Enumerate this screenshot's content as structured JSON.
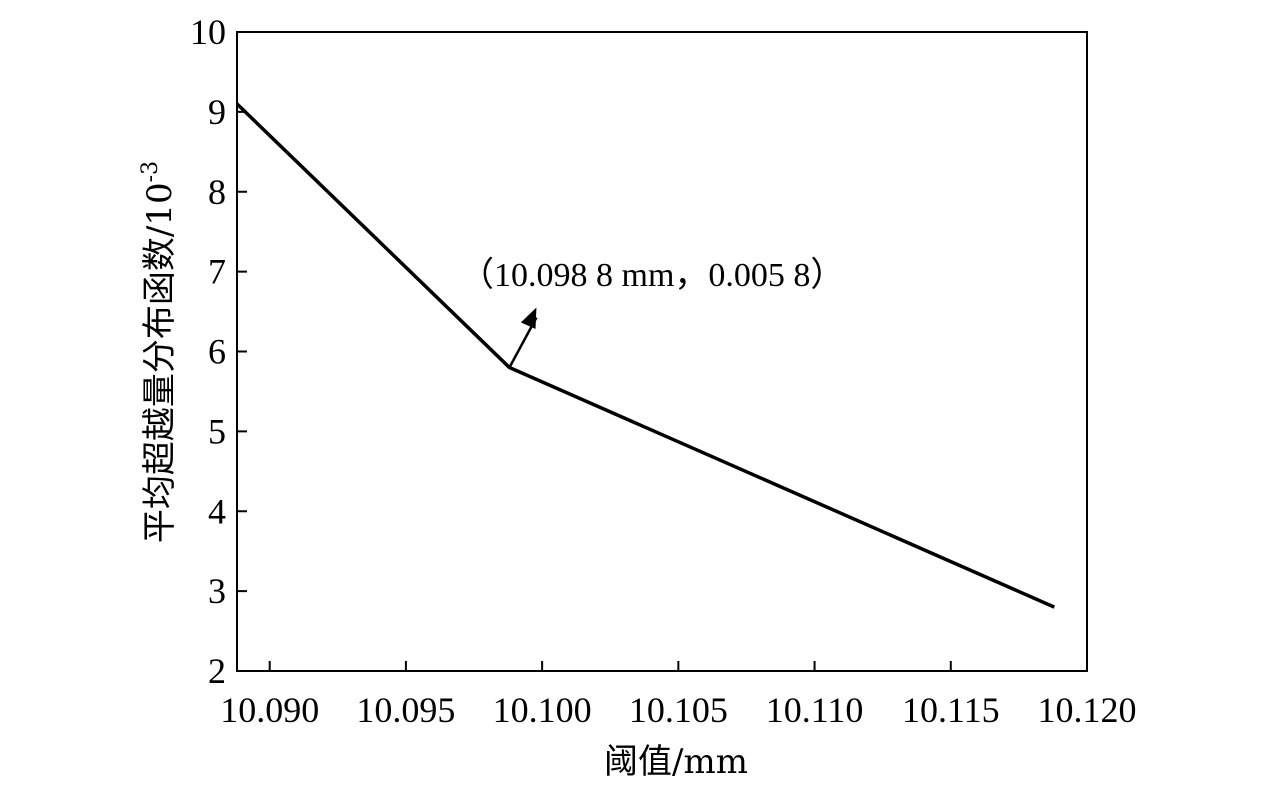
{
  "chart_data": {
    "type": "line",
    "title": "",
    "xlabel": "阈值/mm",
    "ylabel": "平均超越量分布函数/10",
    "ylabel_exponent": "-3",
    "xlim": [
      10.0888,
      10.12
    ],
    "ylim": [
      2,
      10
    ],
    "xticks": [
      "10.090",
      "10.095",
      "10.100",
      "10.105",
      "10.110",
      "10.115",
      "10.120"
    ],
    "yticks": [
      "2",
      "3",
      "4",
      "5",
      "6",
      "7",
      "8",
      "9",
      "10"
    ],
    "grid": false,
    "legend": "none",
    "series": [
      {
        "x": [
          10.0888,
          10.0988,
          10.1188
        ],
        "y": [
          9.1,
          5.8,
          2.8
        ]
      }
    ],
    "annotations": [
      {
        "text": "（10.098 8 mm，0.005 8）",
        "point": [
          10.0988,
          5.8
        ],
        "arrow": true
      }
    ]
  }
}
